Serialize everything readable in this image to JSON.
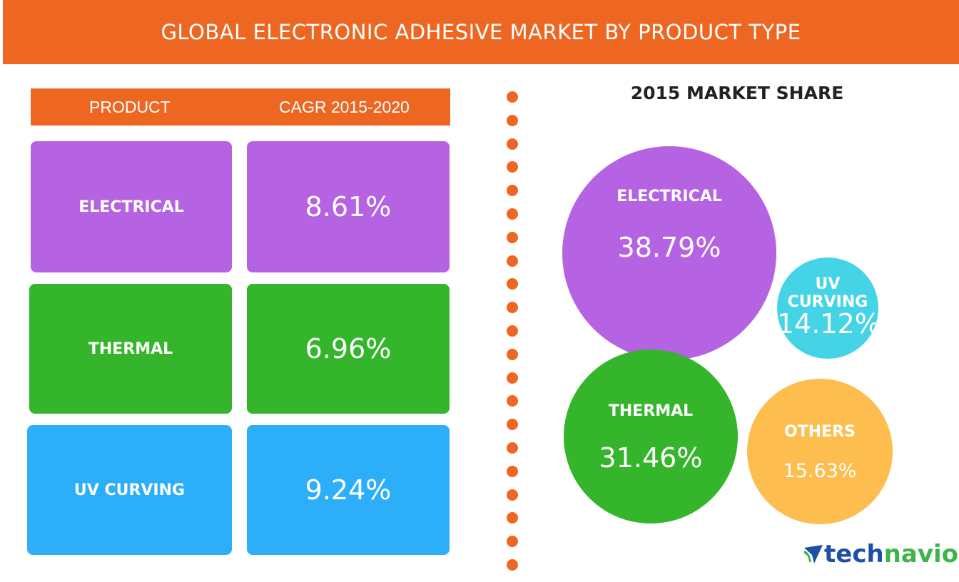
{
  "title": "GLOBAL ELECTRONIC ADHESIVE MARKET BY PRODUCT TYPE",
  "table": {
    "headers": [
      "PRODUCT",
      "CAGR 2015-2020"
    ],
    "rows": [
      {
        "product": "ELECTRICAL",
        "cagr": "8.61%",
        "color": "#B562E3"
      },
      {
        "product": "THERMAL",
        "cagr": "6.96%",
        "color": "#34B52B"
      },
      {
        "product": "UV CURVING",
        "cagr": "9.24%",
        "color": "#2DAEF9"
      }
    ]
  },
  "chart_data": {
    "type": "bubble",
    "title": "2015 MARKET SHARE",
    "categories": [
      "ELECTRICAL",
      "UV CURVING",
      "THERMAL",
      "OTHERS"
    ],
    "values": [
      38.79,
      14.12,
      31.46,
      15.63
    ],
    "labels": [
      "38.79%",
      "14.12%",
      "31.46%",
      "15.63%"
    ],
    "colors": [
      "#B562E3",
      "#45D4E5",
      "#34B52B",
      "#FDBD4F"
    ],
    "unit": "%"
  },
  "logo": {
    "part1": "tech",
    "part2": "navio",
    "color1": "#1E4FA8",
    "color2": "#3DB54A"
  },
  "colors": {
    "accent": "#EE6722"
  }
}
